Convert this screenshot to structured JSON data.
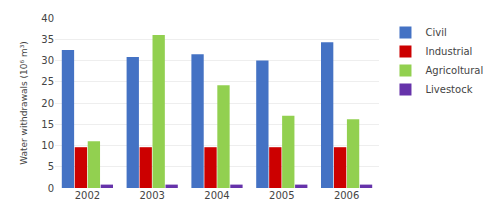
{
  "chart_data": {
    "type": "bar",
    "categories": [
      "2002",
      "2003",
      "2004",
      "2005",
      "2006"
    ],
    "series": [
      {
        "name": "Civil",
        "color": "#4472C4",
        "values": [
          32.5,
          30.8,
          31.5,
          30.0,
          34.3
        ]
      },
      {
        "name": "Industrial",
        "color": "#CC0000",
        "values": [
          9.6,
          9.6,
          9.6,
          9.6,
          9.6
        ]
      },
      {
        "name": "Agricoltural",
        "color": "#92D050",
        "values": [
          11.0,
          36.0,
          24.2,
          17.0,
          16.2
        ]
      },
      {
        "name": "Livestock",
        "color": "#6633AA",
        "values": [
          0.8,
          0.8,
          0.8,
          0.8,
          0.8
        ]
      }
    ],
    "ylabel": "Water withdrawals (10⁶ m³)",
    "ylim": [
      0,
      40
    ],
    "yticks": [
      0,
      5,
      10,
      15,
      20,
      25,
      30,
      35,
      40
    ],
    "grid": true,
    "legend": "right"
  }
}
